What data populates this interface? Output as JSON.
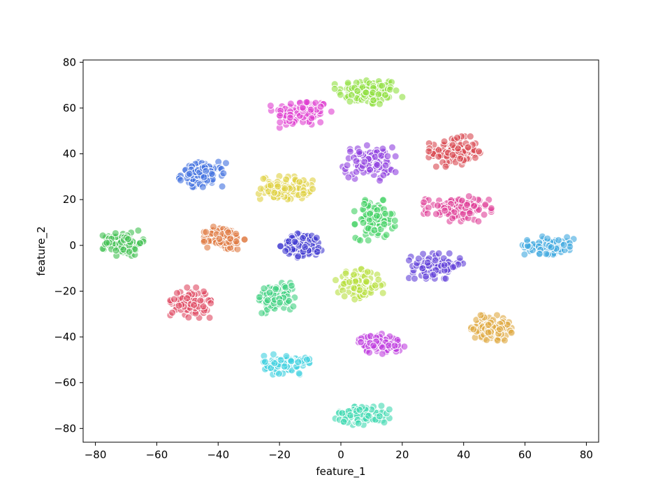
{
  "chart_data": {
    "type": "scatter",
    "title": "",
    "xlabel": "feature_1",
    "ylabel": "feature_2",
    "xlim": [
      -84,
      84
    ],
    "ylim": [
      -86,
      81
    ],
    "xticks": [
      -80,
      -60,
      -40,
      -20,
      0,
      20,
      40,
      60,
      80
    ],
    "yticks": [
      -80,
      -60,
      -40,
      -20,
      0,
      20,
      40,
      60,
      80
    ],
    "xtick_labels": [
      "−80",
      "−60",
      "−40",
      "−20",
      "0",
      "20",
      "40",
      "60",
      "80"
    ],
    "ytick_labels": [
      "−80",
      "−60",
      "−40",
      "−20",
      "0",
      "20",
      "40",
      "60",
      "80"
    ],
    "grid": false,
    "legend": "none",
    "point_alpha": 0.6,
    "clusters": [
      {
        "color": "#90e040",
        "cx": 9,
        "cy": 67,
        "sx": 5,
        "sy": 3,
        "n": 110
      },
      {
        "color": "#e040d0",
        "cx": -13,
        "cy": 58,
        "sx": 4.5,
        "sy": 3,
        "n": 100
      },
      {
        "color": "#d84850",
        "cx": 37,
        "cy": 41,
        "sx": 3.8,
        "sy": 3,
        "n": 110
      },
      {
        "color": "#9040e0",
        "cx": 9,
        "cy": 36,
        "sx": 4,
        "sy": 3.5,
        "n": 100
      },
      {
        "color": "#4070e0",
        "cx": -45,
        "cy": 31,
        "sx": 3.5,
        "sy": 2.5,
        "n": 100
      },
      {
        "color": "#e0d040",
        "cx": -18,
        "cy": 25,
        "sx": 4,
        "sy": 2.5,
        "n": 100
      },
      {
        "color": "#e04098",
        "cx": 38,
        "cy": 16,
        "sx": 5,
        "sy": 2.5,
        "n": 110
      },
      {
        "color": "#40d060",
        "cx": 11,
        "cy": 11,
        "sx": 3,
        "sy": 4,
        "n": 100
      },
      {
        "color": "#40c050",
        "cx": -71,
        "cy": 1,
        "sx": 3,
        "sy": 2.5,
        "n": 100
      },
      {
        "color": "#e07840",
        "cx": -38,
        "cy": 3,
        "sx": 3,
        "sy": 2.5,
        "n": 100
      },
      {
        "color": "#4038d0",
        "cx": -12,
        "cy": 0,
        "sx": 3.5,
        "sy": 2.5,
        "n": 100
      },
      {
        "color": "#40a8e0",
        "cx": 68,
        "cy": 0,
        "sx": 4,
        "sy": 1.8,
        "n": 110
      },
      {
        "color": "#6040d8",
        "cx": 31,
        "cy": -9,
        "sx": 4,
        "sy": 2.5,
        "n": 100
      },
      {
        "color": "#b8e040",
        "cx": 6,
        "cy": -17,
        "sx": 3.5,
        "sy": 3,
        "n": 100
      },
      {
        "color": "#e04860",
        "cx": -49,
        "cy": -25,
        "sx": 3,
        "sy": 3,
        "n": 100
      },
      {
        "color": "#40d080",
        "cx": -21,
        "cy": -23,
        "sx": 3,
        "sy": 3,
        "n": 100
      },
      {
        "color": "#e0a840",
        "cx": 49,
        "cy": -36,
        "sx": 3,
        "sy": 2.5,
        "n": 100
      },
      {
        "color": "#c040e0",
        "cx": 13,
        "cy": -43,
        "sx": 3.5,
        "sy": 2,
        "n": 100
      },
      {
        "color": "#40d0e0",
        "cx": -18,
        "cy": -52,
        "sx": 3.5,
        "sy": 2,
        "n": 100
      },
      {
        "color": "#40d8b0",
        "cx": 7,
        "cy": -74,
        "sx": 4,
        "sy": 2,
        "n": 100
      }
    ]
  }
}
